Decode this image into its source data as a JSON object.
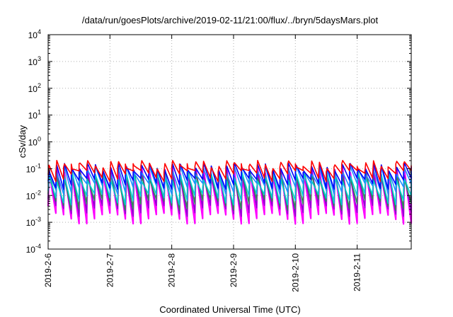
{
  "chart_data": {
    "type": "line",
    "title": "/data/run/goesPlots/archive/2019-02-11/21:00/flux/../bryn/5daysMars.plot",
    "xlabel": "Coordinated Universal Time (UTC)",
    "ylabel": "cSv/day",
    "x_ticks": [
      "2019-2-6",
      "2019-2-7",
      "2019-2-8",
      "2019-2-9",
      "2019-2-10",
      "2019-2-11"
    ],
    "xlim": [
      "2019-02-06T00:00",
      "2019-02-11T21:00"
    ],
    "y_scale": "log",
    "ylim": [
      0.0001,
      10000
    ],
    "y_ticks": [
      {
        "base": "10",
        "exp": "-4"
      },
      {
        "base": "10",
        "exp": "-3"
      },
      {
        "base": "10",
        "exp": "-2"
      },
      {
        "base": "10",
        "exp": "-1"
      },
      {
        "base": "10",
        "exp": "0"
      },
      {
        "base": "10",
        "exp": "1"
      },
      {
        "base": "10",
        "exp": "2"
      },
      {
        "base": "10",
        "exp": "3"
      },
      {
        "base": "10",
        "exp": "4"
      }
    ],
    "grid": true,
    "legend": "none",
    "series_colors": [
      "#ff00ff",
      "#9400d3",
      "#2e8b57",
      "#00ced1",
      "#1e90ff",
      "#0000ff",
      "#ff0000"
    ],
    "pattern": {
      "description_values": "sawtooth oscillation repeating roughly 8 times per day",
      "cycles_per_day": 8,
      "series": [
        {
          "color": "#ff00ff",
          "peak": 0.08,
          "trough": 0.0015
        },
        {
          "color": "#9400d3",
          "peak": 0.07,
          "trough": 0.003
        },
        {
          "color": "#2e8b57",
          "peak": 0.06,
          "trough": 0.005
        },
        {
          "color": "#00ced1",
          "peak": 0.05,
          "trough": 0.008
        },
        {
          "color": "#1e90ff",
          "peak": 0.09,
          "trough": 0.02
        },
        {
          "color": "#0000ff",
          "peak": 0.12,
          "trough": 0.03
        },
        {
          "color": "#ff0000",
          "peak": 0.15,
          "trough": 0.06
        }
      ]
    }
  }
}
